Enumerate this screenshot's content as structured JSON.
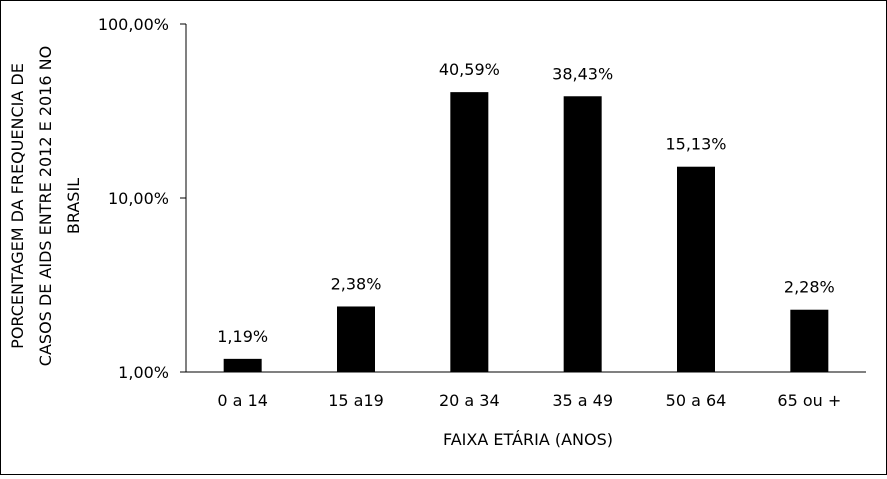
{
  "chart_data": {
    "type": "bar",
    "scale": "log",
    "categories": [
      "0 a 14",
      "15 a19",
      "20 a 34",
      "35 a 49",
      "50 a 64",
      "65 ou +"
    ],
    "values": [
      1.19,
      2.38,
      40.59,
      38.43,
      15.13,
      2.28
    ],
    "data_labels": [
      "1,19%",
      "2,38%",
      "40,59%",
      "38,43%",
      "15,13%",
      "2,28%"
    ],
    "xlabel": "FAIXA ETÁRIA (ANOS)",
    "ylabel_lines": [
      "PORCENTAGEM DA FREQUENCIA DE",
      "CASOS DE AIDS ENTRE 2012 E 2016 NO",
      "BRASIL"
    ],
    "ylim": [
      1,
      100
    ],
    "yticks": [
      1,
      10,
      100
    ],
    "ytick_labels": [
      "1,00%",
      "10,00%",
      "100,00%"
    ],
    "grid": false,
    "bar_color": "#000000"
  }
}
